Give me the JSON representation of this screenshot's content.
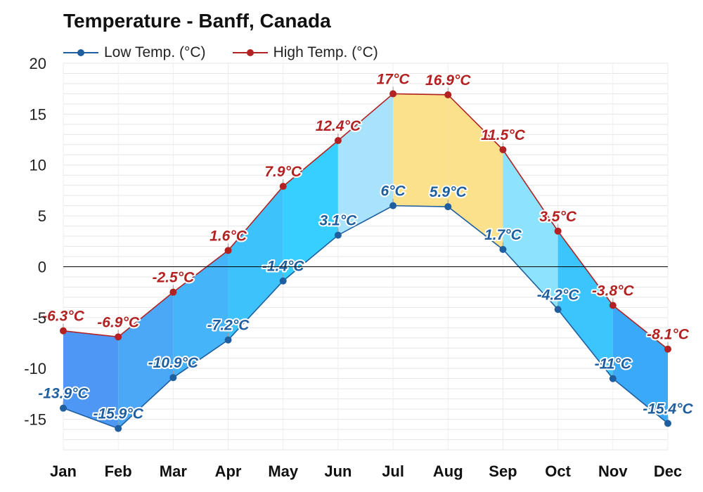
{
  "title": "Temperature - Banff, Canada",
  "legend": {
    "low_label": "Low Temp. (°C)",
    "high_label": "High Temp. (°C)"
  },
  "colors": {
    "low_line": "#1f5fa0",
    "high_line": "#b22222",
    "zero_line": "#000000",
    "grid": "#e6e6e6"
  },
  "chart_data": {
    "type": "area",
    "categories": [
      "Jan",
      "Feb",
      "Mar",
      "Apr",
      "May",
      "Jun",
      "Jul",
      "Aug",
      "Sep",
      "Oct",
      "Nov",
      "Dec"
    ],
    "series": [
      {
        "name": "Low Temp. (°C)",
        "values": [
          -13.9,
          -15.9,
          -10.9,
          -7.2,
          -1.4,
          3.1,
          6,
          5.9,
          1.7,
          -4.2,
          -11,
          -15.4
        ],
        "labels": [
          "-13.9°C",
          "-15.9°C",
          "-10.9°C",
          "-7.2°C",
          "-1.4°C",
          "3.1°C",
          "6°C",
          "5.9°C",
          "1.7°C",
          "-4.2°C",
          "-11°C",
          "-15.4°C"
        ]
      },
      {
        "name": "High Temp. (°C)",
        "values": [
          -6.3,
          -6.9,
          -2.5,
          1.6,
          7.9,
          12.4,
          17,
          16.9,
          11.5,
          3.5,
          -3.8,
          -8.1
        ],
        "labels": [
          "-6.3°C",
          "-6.9°C",
          "-2.5°C",
          "1.6°C",
          "7.9°C",
          "12.4°C",
          "17°C",
          "16.9°C",
          "11.5°C",
          "3.5°C",
          "-3.8°C",
          "-8.1°C"
        ]
      }
    ],
    "band_colors": [
      "#4f97f5",
      "#4aa8f7",
      "#46b4f9",
      "#3dc2fb",
      "#36cfff",
      "#a9e3fb",
      "#fce18c",
      "#fce18c",
      "#8de3fd",
      "#3cc5fd",
      "#3aa9f8",
      "#4f97f5"
    ],
    "ylim": [
      -18,
      20
    ],
    "yticks": [
      "20",
      "15",
      "10",
      "5",
      "0",
      "-5",
      "-10",
      "-15"
    ],
    "grid": true,
    "legend_position": "top-left"
  }
}
